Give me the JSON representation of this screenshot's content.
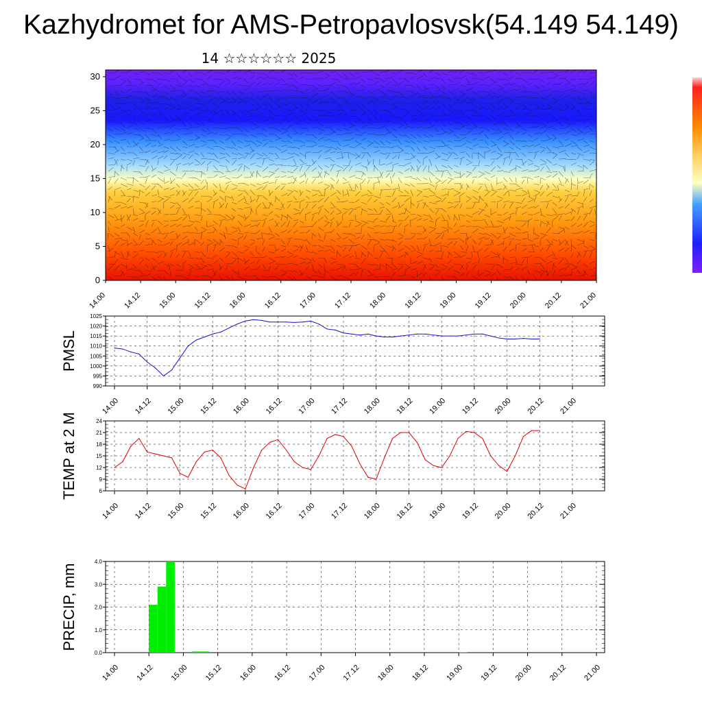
{
  "title": "Kazhydromet for AMS-Petropavlosvsk(54.149 54.149)",
  "subtitle": "14 ☆☆☆☆☆☆ 2025",
  "time_ticks": [
    "14.00",
    "14.12",
    "15.00",
    "15.12",
    "16.00",
    "16.12",
    "17.00",
    "17.12",
    "18.00",
    "18.12",
    "19.00",
    "19.12",
    "20.00",
    "20.12",
    "21.00"
  ],
  "colors": {
    "pressure_line": "#1010d0",
    "temperature_line": "#e00000",
    "precip_bar": "#00ee00",
    "colorbar": [
      "#ffd0d0",
      "#ff2020",
      "#ff8a00",
      "#ffd060",
      "#ffffc0",
      "#40a0ff",
      "#2020ff",
      "#8020ff"
    ]
  },
  "chart_data": [
    {
      "type": "heatmap",
      "name": "cross-section",
      "ylim": [
        0,
        31
      ],
      "yticks": [
        "0",
        "5",
        "10",
        "15",
        "20",
        "25",
        "30"
      ],
      "xticks": [
        "14.00",
        "14.12",
        "15.00",
        "15.12",
        "16.00",
        "16.12",
        "17.00",
        "17.12",
        "18.00",
        "18.12",
        "19.00",
        "19.12",
        "20.00",
        "20.12",
        "21.00"
      ]
    },
    {
      "type": "line",
      "ylabel": "PMSL",
      "ylim": [
        990,
        1025
      ],
      "yticks": [
        "990",
        "995",
        "1000",
        "1005",
        "1010",
        "1015",
        "1020",
        "1025"
      ],
      "x": [
        0,
        0.125,
        0.25,
        0.375,
        0.5,
        0.625,
        0.75,
        0.875,
        1,
        1.125,
        1.25,
        1.375,
        1.5,
        1.625,
        1.75,
        1.875,
        2,
        2.125,
        2.25,
        2.375,
        2.5,
        2.625,
        2.75,
        2.875,
        3,
        3.125,
        3.25,
        3.375,
        3.5,
        3.625,
        3.75,
        3.875,
        4,
        4.125,
        4.25,
        4.375,
        4.5,
        4.625,
        4.75,
        4.875,
        5,
        5.125,
        5.25,
        5.375,
        5.5,
        5.625,
        5.75,
        5.875,
        6,
        6.125,
        6.25,
        6.375,
        6.5
      ],
      "values": [
        1009,
        1008.5,
        1007,
        1006,
        1002,
        999,
        995,
        998,
        1004,
        1010,
        1013,
        1014.5,
        1016,
        1017,
        1019,
        1021,
        1022.5,
        1023.2,
        1022.8,
        1022,
        1022,
        1022,
        1021.8,
        1022,
        1022.5,
        1021,
        1018.5,
        1018,
        1016.5,
        1016,
        1015.5,
        1016,
        1015,
        1014.5,
        1014.5,
        1015,
        1015.5,
        1016,
        1016,
        1015.5,
        1015,
        1015,
        1015,
        1015.5,
        1016,
        1016,
        1015,
        1014,
        1013.5,
        1013.5,
        1013.8,
        1013.5,
        1013.5
      ],
      "xticks": [
        "14.00",
        "14.12",
        "15.00",
        "15.12",
        "16.00",
        "16.12",
        "17.00",
        "17.12",
        "18.00",
        "18.12",
        "19.00",
        "19.12",
        "20.00",
        "20.12",
        "21.00"
      ]
    },
    {
      "type": "line",
      "ylabel": "TEMP at 2 M",
      "ylim": [
        6,
        24
      ],
      "yticks": [
        "6",
        "9",
        "12",
        "15",
        "18",
        "21",
        "24"
      ],
      "x": [
        0,
        0.125,
        0.25,
        0.375,
        0.5,
        0.625,
        0.75,
        0.875,
        1,
        1.125,
        1.25,
        1.375,
        1.5,
        1.625,
        1.75,
        1.875,
        2,
        2.125,
        2.25,
        2.375,
        2.5,
        2.625,
        2.75,
        2.875,
        3,
        3.125,
        3.25,
        3.375,
        3.5,
        3.625,
        3.75,
        3.875,
        4,
        4.125,
        4.25,
        4.375,
        4.5,
        4.625,
        4.75,
        4.875,
        5,
        5.125,
        5.25,
        5.375,
        5.5,
        5.625,
        5.75,
        5.875,
        6,
        6.125,
        6.25,
        6.375,
        6.5
      ],
      "values": [
        12,
        13.5,
        17.5,
        19.5,
        16,
        15.5,
        15,
        14.5,
        10.5,
        9.5,
        13.5,
        16,
        16.5,
        14.5,
        10,
        7.5,
        6.5,
        12,
        16.5,
        18.5,
        19.2,
        16.5,
        13.5,
        12,
        11.5,
        15,
        19.5,
        20.5,
        20,
        17.5,
        13,
        9.5,
        9,
        14.5,
        19.5,
        21,
        21,
        18.5,
        14,
        12.5,
        12,
        15,
        19.5,
        21.3,
        21,
        19.5,
        15,
        12.5,
        11,
        15,
        20,
        21.5,
        21.5
      ],
      "xticks": [
        "14.00",
        "14.12",
        "15.00",
        "15.12",
        "16.00",
        "16.12",
        "17.00",
        "17.12",
        "18.00",
        "18.12",
        "19.00",
        "19.12",
        "20.00",
        "20.12",
        "21.00"
      ]
    },
    {
      "type": "bar",
      "ylabel": "PRECIP, mm",
      "ylim": [
        0,
        4
      ],
      "yticks": [
        "0.0",
        "1.0",
        "2.0",
        "3.0",
        "4.0"
      ],
      "x": [
        0.375,
        0.5,
        0.625,
        0.75,
        0.875,
        1,
        1.125,
        1.25,
        1.375,
        5,
        5.125
      ],
      "values": [
        0,
        2.1,
        2.9,
        4.0,
        0,
        0,
        0.05,
        0.05,
        0,
        0.02,
        0
      ],
      "bar_width": 0.125,
      "xticks": [
        "14.00",
        "14.12",
        "15.00",
        "15.12",
        "16.00",
        "16.12",
        "17.00",
        "17.12",
        "18.00",
        "18.12",
        "19.00",
        "19.12",
        "20.00",
        "20.12",
        "21.00"
      ]
    }
  ]
}
